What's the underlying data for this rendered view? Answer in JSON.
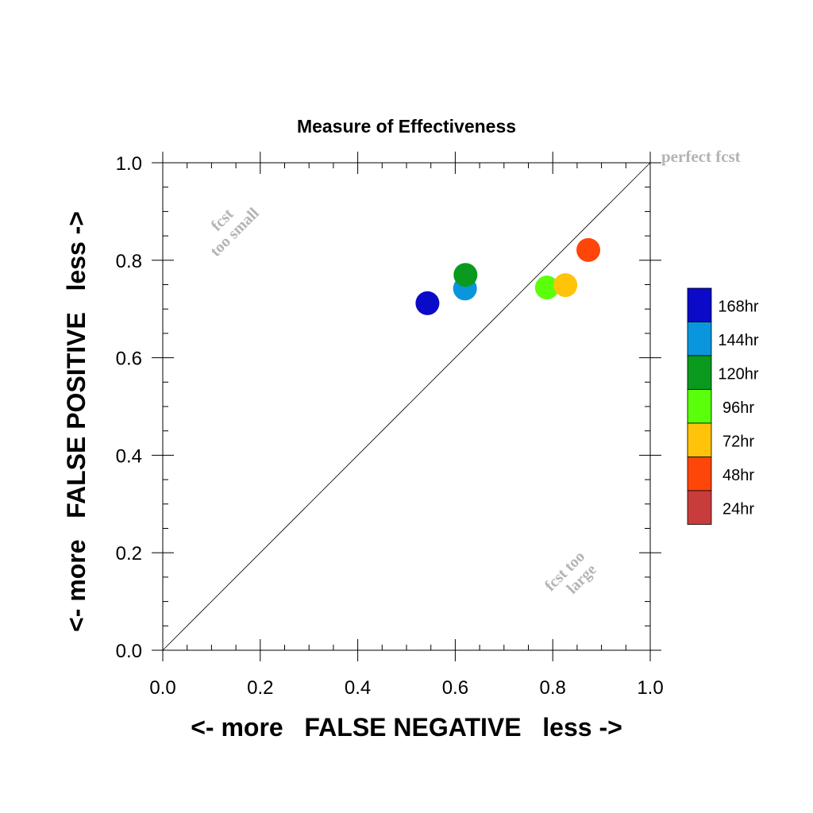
{
  "chart_data": {
    "type": "scatter",
    "title": "Measure of Effectiveness",
    "xlabel": "<- more   FALSE NEGATIVE   less ->",
    "ylabel": "<- more   FALSE POSITIVE   less ->",
    "xlim": [
      0.0,
      1.0
    ],
    "ylim": [
      0.0,
      1.0
    ],
    "x_ticks": [
      "0.0",
      "0.2",
      "0.4",
      "0.6",
      "0.8",
      "1.0"
    ],
    "y_ticks": [
      "0.0",
      "0.2",
      "0.4",
      "0.6",
      "0.8",
      "1.0"
    ],
    "grid": false,
    "diagonal_reference_line": true,
    "annotations": {
      "perfect": "perfect fcst",
      "too_small_line1": "fcst",
      "too_small_line2": "too small",
      "too_large_line1": "fcst too",
      "too_large_line2": "large"
    },
    "legend_position": "right",
    "legend": [
      {
        "label": "168hr",
        "color": "#0a0ac8"
      },
      {
        "label": "144hr",
        "color": "#0a96dc"
      },
      {
        "label": "120hr",
        "color": "#0a9a1e"
      },
      {
        "label": "96hr",
        "color": "#5aff0a"
      },
      {
        "label": "72hr",
        "color": "#ffc30a"
      },
      {
        "label": "48hr",
        "color": "#ff460a"
      },
      {
        "label": "24hr",
        "color": "#c83c3c"
      }
    ],
    "points": [
      {
        "series": "168hr",
        "x": 0.543,
        "y": 0.712,
        "color": "#0a0ac8"
      },
      {
        "series": "144hr",
        "x": 0.62,
        "y": 0.742,
        "color": "#0a96dc"
      },
      {
        "series": "120hr",
        "x": 0.621,
        "y": 0.77,
        "color": "#0a9a1e"
      },
      {
        "series": "96hr",
        "x": 0.788,
        "y": 0.744,
        "color": "#5aff0a"
      },
      {
        "series": "72hr",
        "x": 0.826,
        "y": 0.749,
        "color": "#ffc30a"
      },
      {
        "series": "48hr",
        "x": 0.873,
        "y": 0.821,
        "color": "#ff460a"
      }
    ]
  }
}
